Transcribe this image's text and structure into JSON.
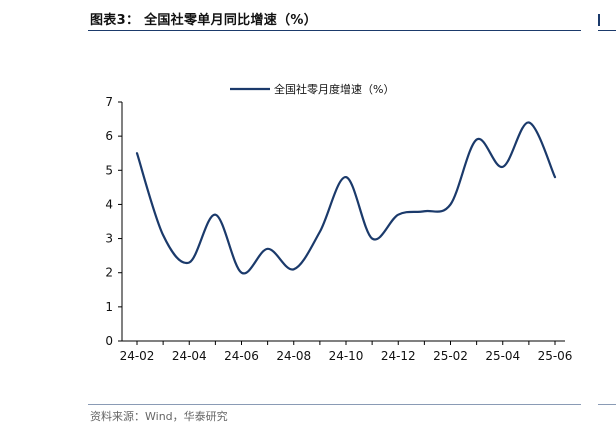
{
  "header": {
    "title": "图表3：  全国社零单月同比增速（%）"
  },
  "footer": {
    "source": "资料来源：Wind，华泰研究"
  },
  "colors": {
    "series": "#1b3a6b",
    "axis": "#000000",
    "rule_top": "#1b3a6b",
    "rule_bottom": "#8a9bb5"
  },
  "chart_data": {
    "type": "line",
    "title": "",
    "xlabel": "",
    "ylabel": "",
    "ylim": [
      0,
      7
    ],
    "yticks": [
      0,
      1,
      2,
      3,
      4,
      5,
      6,
      7
    ],
    "xticks": [
      "24-02",
      "24-04",
      "24-06",
      "24-08",
      "24-10",
      "24-12",
      "25-02",
      "25-04",
      "25-06"
    ],
    "grid": false,
    "legend_position": "top-center",
    "smooth": true,
    "x": [
      "24-02",
      "24-03",
      "24-04",
      "24-05",
      "24-06",
      "24-07",
      "24-08",
      "24-09",
      "24-10",
      "24-11",
      "24-12",
      "25-01",
      "25-02",
      "25-03",
      "25-04",
      "25-05",
      "25-06"
    ],
    "series": [
      {
        "name": "全国社零月度增速（%）",
        "values": [
          5.5,
          3.1,
          2.3,
          3.7,
          2.0,
          2.7,
          2.1,
          3.2,
          4.8,
          3.0,
          3.7,
          3.8,
          4.0,
          5.9,
          5.1,
          6.4,
          4.8
        ]
      }
    ]
  }
}
